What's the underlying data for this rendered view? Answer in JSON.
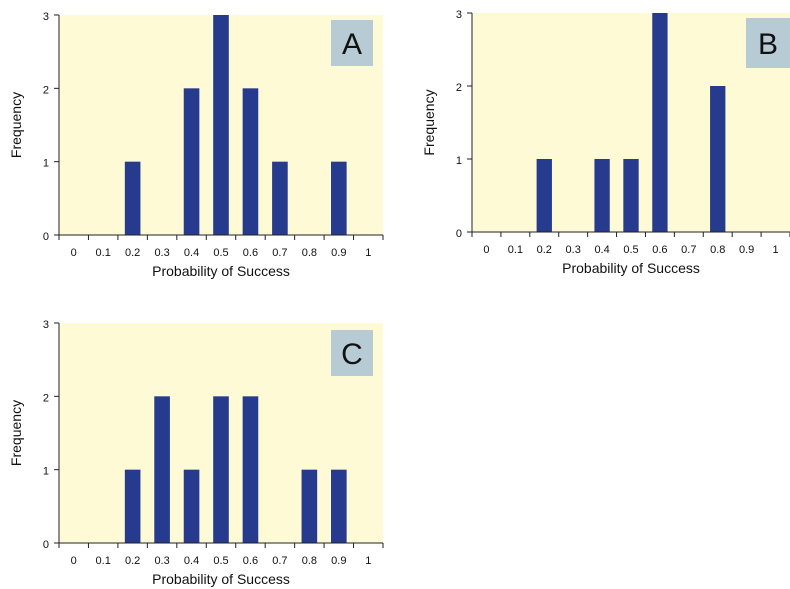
{
  "colors": {
    "plot_background": "#fdfad5",
    "bar": "#263a8e",
    "panel_label_box": "#b6cbd3",
    "axis": "#222222"
  },
  "chart_data": [
    {
      "type": "bar",
      "panel_label": "A",
      "categories": [
        "0",
        "0.1",
        "0.2",
        "0.3",
        "0.4",
        "0.5",
        "0.6",
        "0.7",
        "0.8",
        "0.9",
        "1"
      ],
      "x": [
        0,
        0.1,
        0.2,
        0.3,
        0.4,
        0.5,
        0.6,
        0.7,
        0.8,
        0.9,
        1
      ],
      "values": [
        0,
        0,
        1,
        0,
        2,
        3,
        2,
        1,
        0,
        1,
        0
      ],
      "xlabel": "Probability of Success",
      "ylabel": "Frequency",
      "yticks": [
        "0",
        "1",
        "2",
        "3"
      ],
      "ylim": [
        0,
        3
      ],
      "grid": false
    },
    {
      "type": "bar",
      "panel_label": "B",
      "categories": [
        "0",
        "0.1",
        "0.2",
        "0.3",
        "0.4",
        "0.5",
        "0.6",
        "0.7",
        "0.8",
        "0.9",
        "1"
      ],
      "x": [
        0,
        0.1,
        0.2,
        0.3,
        0.4,
        0.5,
        0.6,
        0.7,
        0.8,
        0.9,
        1
      ],
      "values": [
        0,
        0,
        1,
        0,
        1,
        1,
        3,
        0,
        2,
        0,
        0
      ],
      "xlabel": "Probability of Success",
      "ylabel": "Frequency",
      "yticks": [
        "0",
        "1",
        "2",
        "3"
      ],
      "ylim": [
        0,
        3
      ],
      "grid": false
    },
    {
      "type": "bar",
      "panel_label": "C",
      "categories": [
        "0",
        "0.1",
        "0.2",
        "0.3",
        "0.4",
        "0.5",
        "0.6",
        "0.7",
        "0.8",
        "0.9",
        "1"
      ],
      "x": [
        0,
        0.1,
        0.2,
        0.3,
        0.4,
        0.5,
        0.6,
        0.7,
        0.8,
        0.9,
        1
      ],
      "values": [
        0,
        0,
        1,
        2,
        1,
        2,
        2,
        0,
        1,
        1,
        0
      ],
      "xlabel": "Probability of Success",
      "ylabel": "Frequency",
      "yticks": [
        "0",
        "1",
        "2",
        "3"
      ],
      "ylim": [
        0,
        3
      ],
      "grid": false
    }
  ]
}
